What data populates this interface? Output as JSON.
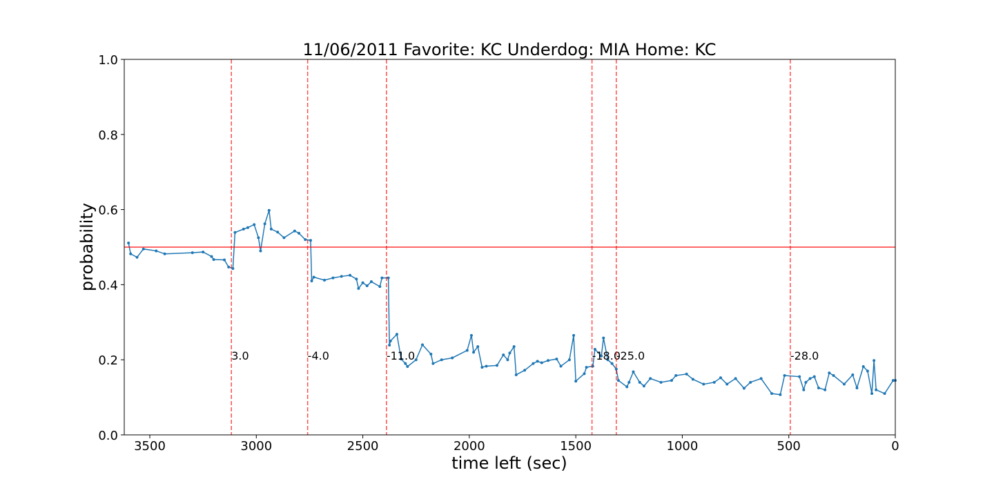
{
  "chart_data": {
    "type": "line",
    "title": "11/06/2011 Favorite: KC Underdog: MIA Home: KC",
    "xlabel": "time left (sec)",
    "ylabel": "probability",
    "xlim": [
      3620,
      0
    ],
    "xticks": [
      3500,
      3000,
      2500,
      2000,
      1500,
      1000,
      500,
      0
    ],
    "ylim": [
      0,
      1
    ],
    "yticks": [
      {
        "value": 0,
        "label": "0.0"
      },
      {
        "value": 0.2,
        "label": "0.2"
      },
      {
        "value": 0.4,
        "label": "0.4"
      },
      {
        "value": 0.6,
        "label": "0.6"
      },
      {
        "value": 0.8,
        "label": "0.8"
      },
      {
        "value": 1,
        "label": "1.0"
      }
    ],
    "x": [
      3600,
      3590,
      3560,
      3530,
      3470,
      3430,
      3300,
      3250,
      3210,
      3200,
      3150,
      3130,
      3110,
      3100,
      3060,
      3040,
      3010,
      2990,
      2980,
      2960,
      2940,
      2930,
      2900,
      2870,
      2820,
      2800,
      2770,
      2745,
      2740,
      2730,
      2680,
      2640,
      2600,
      2560,
      2530,
      2520,
      2500,
      2480,
      2460,
      2420,
      2410,
      2380,
      2375,
      2370,
      2340,
      2320,
      2300,
      2290,
      2250,
      2220,
      2180,
      2170,
      2130,
      2080,
      2010,
      1990,
      1980,
      1960,
      1940,
      1920,
      1870,
      1840,
      1820,
      1810,
      1790,
      1780,
      1740,
      1700,
      1680,
      1660,
      1630,
      1590,
      1570,
      1530,
      1510,
      1500,
      1460,
      1450,
      1420,
      1410,
      1380,
      1370,
      1350,
      1330,
      1310,
      1300,
      1260,
      1250,
      1230,
      1200,
      1180,
      1150,
      1100,
      1050,
      1030,
      980,
      950,
      900,
      850,
      820,
      790,
      750,
      710,
      680,
      630,
      580,
      540,
      520,
      450,
      430,
      420,
      400,
      380,
      360,
      330,
      310,
      290,
      240,
      200,
      180,
      150,
      130,
      110,
      100,
      90,
      50,
      10,
      0
    ],
    "series": [
      {
        "color": "#1f77b4",
        "values": [
          0.511,
          0.482,
          0.473,
          0.495,
          0.49,
          0.482,
          0.485,
          0.487,
          0.475,
          0.467,
          0.466,
          0.447,
          0.443,
          0.539,
          0.548,
          0.552,
          0.56,
          0.525,
          0.49,
          0.562,
          0.598,
          0.548,
          0.54,
          0.525,
          0.543,
          0.537,
          0.52,
          0.518,
          0.41,
          0.42,
          0.412,
          0.418,
          0.422,
          0.425,
          0.415,
          0.39,
          0.405,
          0.397,
          0.408,
          0.395,
          0.418,
          0.418,
          0.239,
          0.25,
          0.268,
          0.202,
          0.19,
          0.182,
          0.2,
          0.24,
          0.215,
          0.19,
          0.2,
          0.205,
          0.225,
          0.265,
          0.22,
          0.235,
          0.18,
          0.183,
          0.185,
          0.213,
          0.2,
          0.218,
          0.235,
          0.16,
          0.172,
          0.19,
          0.196,
          0.192,
          0.198,
          0.202,
          0.183,
          0.2,
          0.265,
          0.143,
          0.163,
          0.18,
          0.183,
          0.228,
          0.21,
          0.258,
          0.2,
          0.19,
          0.175,
          0.145,
          0.128,
          0.14,
          0.168,
          0.14,
          0.13,
          0.15,
          0.14,
          0.145,
          0.158,
          0.162,
          0.148,
          0.135,
          0.14,
          0.152,
          0.135,
          0.15,
          0.124,
          0.14,
          0.15,
          0.11,
          0.107,
          0.158,
          0.155,
          0.12,
          0.14,
          0.15,
          0.155,
          0.125,
          0.12,
          0.165,
          0.158,
          0.135,
          0.16,
          0.125,
          0.182,
          0.17,
          0.11,
          0.198,
          0.12,
          0.11,
          0.145,
          0.145
        ]
      }
    ],
    "hline": {
      "y": 0.5,
      "color": "#ff0000"
    },
    "vline_color": "#ff0000",
    "vlines": [
      {
        "x": 3117,
        "label": "3.0"
      },
      {
        "x": 2759,
        "label": "-4.0"
      },
      {
        "x": 2389,
        "label": "-11.0"
      },
      {
        "x": 1424,
        "label": "-18.0"
      },
      {
        "x": 1310,
        "label": "-25.0"
      },
      {
        "x": 493,
        "label": "-28.0"
      }
    ]
  }
}
